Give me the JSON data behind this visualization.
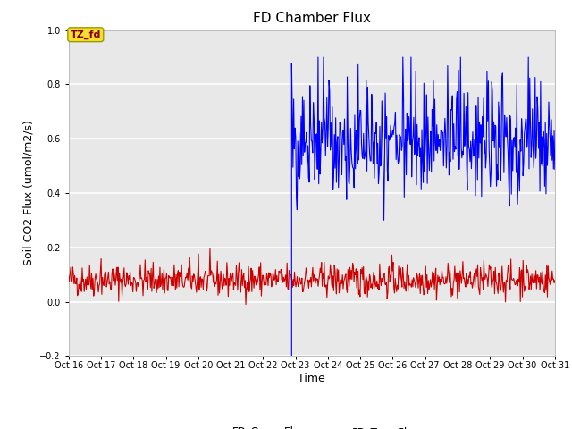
{
  "title": "FD Chamber Flux",
  "xlabel": "Time",
  "ylabel": "Soil CO2 Flux (umol/m2/s)",
  "ylim": [
    -0.2,
    1.0
  ],
  "xlim_start": 16,
  "xlim_end": 31,
  "xtick_labels": [
    "Oct 16",
    "Oct 17",
    "Oct 18",
    "Oct 19",
    "Oct 20",
    "Oct 21",
    "Oct 22",
    "Oct 23",
    "Oct 24",
    "Oct 25",
    "Oct 26",
    "Oct 27",
    "Oct 28",
    "Oct 29",
    "Oct 30",
    "Oct 31"
  ],
  "xtick_positions": [
    16,
    17,
    18,
    19,
    20,
    21,
    22,
    23,
    24,
    25,
    26,
    27,
    28,
    29,
    30,
    31
  ],
  "annotation_label": "TZ_fd",
  "vline_color": "#0000FF",
  "open_flux_color": "#CC0000",
  "tree_flux_color": "#0000FF",
  "legend_labels": [
    "FD_Open_Flux",
    "FD_Tree_Flux"
  ],
  "plot_bg_color": "#E8E8E8",
  "fig_bg_color": "#FFFFFF",
  "grid_color": "#FFFFFF",
  "title_fontsize": 11,
  "axis_label_fontsize": 9,
  "tick_fontsize": 7,
  "seed": 42
}
